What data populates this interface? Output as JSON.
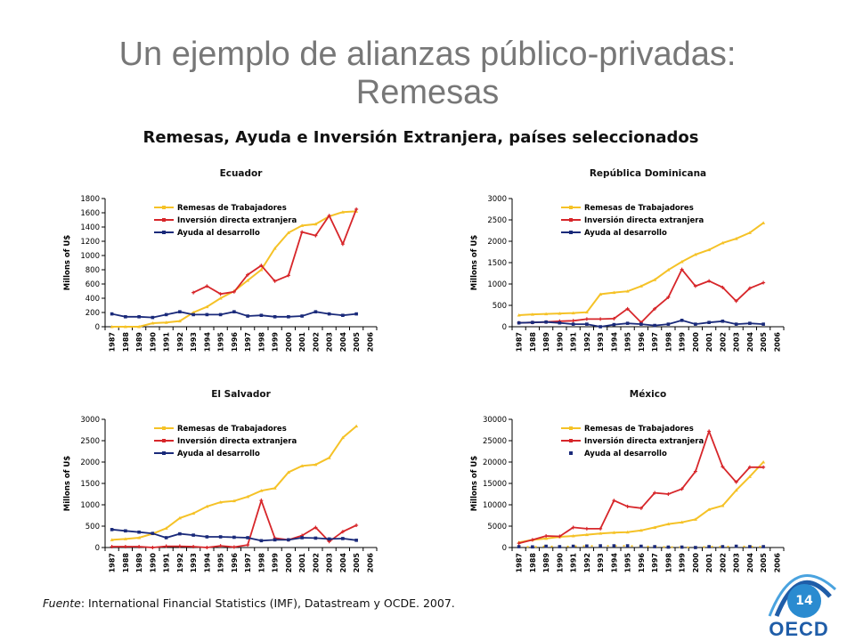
{
  "title_line1": "Un ejemplo de alianzas público-privadas:",
  "title_line2": "Remesas",
  "subtitle": "Remesas, Ayuda e Inversión Extranjera, países seleccionados",
  "source_label": "Fuente",
  "source_text": ": International Financial Statistics (IMF), Datastream y OCDE. 2007.",
  "page_number": "14",
  "logo_text": "OECD",
  "colors": {
    "remesas": "#f5c227",
    "ied": "#d7262a",
    "ayuda": "#1a2a7a"
  },
  "chart_data": [
    {
      "type": "line",
      "title": "Ecuador",
      "ylabel": "Millons of U$",
      "ylim": [
        0,
        1800
      ],
      "yticks": [
        0,
        200,
        400,
        600,
        800,
        1000,
        1200,
        1400,
        1600,
        1800
      ],
      "categories": [
        "1987",
        "1988",
        "1989",
        "1990",
        "1991",
        "1992",
        "1993",
        "1994",
        "1995",
        "1996",
        "1997",
        "1998",
        "1999",
        "2000",
        "2001",
        "2002",
        "2003",
        "2004",
        "2005",
        "2006"
      ],
      "legend": "top-left",
      "series": [
        {
          "name": "Remesas de Trabajadores",
          "values": [
            0,
            0,
            0,
            50,
            60,
            80,
            200,
            280,
            400,
            500,
            650,
            800,
            1100,
            1320,
            1420,
            1440,
            1550,
            1610,
            1620,
            null
          ]
        },
        {
          "name": "Inversión directa extranjera",
          "values": [
            null,
            null,
            null,
            null,
            null,
            null,
            480,
            570,
            460,
            490,
            730,
            860,
            640,
            720,
            1330,
            1280,
            1560,
            1160,
            1650,
            null
          ]
        },
        {
          "name": "Ayuda al desarrollo",
          "values": [
            180,
            140,
            140,
            130,
            170,
            210,
            170,
            170,
            170,
            210,
            150,
            160,
            140,
            140,
            150,
            210,
            180,
            160,
            180,
            null
          ]
        }
      ]
    },
    {
      "type": "line",
      "title": "República Dominicana",
      "ylabel": "Millons of U$",
      "ylim": [
        0,
        3000
      ],
      "yticks": [
        0,
        500,
        1000,
        1500,
        2000,
        2500,
        3000
      ],
      "categories": [
        "1987",
        "1988",
        "1989",
        "1990",
        "1991",
        "1992",
        "1993",
        "1994",
        "1995",
        "1996",
        "1997",
        "1998",
        "1999",
        "2000",
        "2001",
        "2002",
        "2003",
        "2004",
        "2005",
        "2006"
      ],
      "legend": "top-left",
      "series": [
        {
          "name": "Remesas de Trabajadores",
          "values": [
            270,
            290,
            300,
            310,
            320,
            340,
            760,
            800,
            830,
            950,
            1100,
            1330,
            1520,
            1690,
            1800,
            1960,
            2060,
            2200,
            2430,
            null
          ]
        },
        {
          "name": "Inversión directa extranjera",
          "values": [
            90,
            100,
            110,
            130,
            140,
            180,
            180,
            190,
            420,
            100,
            420,
            690,
            1340,
            950,
            1070,
            920,
            600,
            900,
            1030,
            null
          ]
        },
        {
          "name": "Ayuda al desarrollo",
          "values": [
            90,
            100,
            110,
            90,
            60,
            60,
            0,
            50,
            80,
            60,
            30,
            60,
            150,
            60,
            100,
            130,
            60,
            80,
            60,
            null
          ]
        }
      ]
    },
    {
      "type": "line",
      "title": "El Salvador",
      "ylabel": "Millons of U$",
      "ylim": [
        0,
        3000
      ],
      "yticks": [
        0,
        500,
        1000,
        1500,
        2000,
        2500,
        3000
      ],
      "categories": [
        "1987",
        "1988",
        "1989",
        "1990",
        "1991",
        "1992",
        "1993",
        "1994",
        "1995",
        "1996",
        "1997",
        "1998",
        "1999",
        "2000",
        "2001",
        "2002",
        "2003",
        "2004",
        "2005",
        "2006"
      ],
      "legend": "top-left",
      "series": [
        {
          "name": "Remesas de Trabajadores",
          "values": [
            180,
            200,
            230,
            320,
            450,
            690,
            800,
            960,
            1060,
            1090,
            1190,
            1330,
            1390,
            1760,
            1910,
            1940,
            2100,
            2570,
            2840,
            null
          ]
        },
        {
          "name": "Inversión directa extranjera",
          "values": [
            20,
            20,
            20,
            0,
            30,
            30,
            20,
            0,
            40,
            10,
            60,
            1100,
            220,
            180,
            280,
            470,
            140,
            370,
            520,
            null
          ]
        },
        {
          "name": "Ayuda al desarrollo",
          "values": [
            420,
            390,
            360,
            330,
            230,
            320,
            290,
            250,
            250,
            240,
            230,
            160,
            180,
            180,
            230,
            220,
            200,
            210,
            170,
            null
          ]
        }
      ]
    },
    {
      "type": "line",
      "title": "México",
      "ylabel": "Millons of U$",
      "ylim": [
        0,
        30000
      ],
      "yticks": [
        0,
        5000,
        10000,
        15000,
        20000,
        25000,
        30000
      ],
      "categories": [
        "1987",
        "1988",
        "1989",
        "1990",
        "1991",
        "1992",
        "1993",
        "1994",
        "1995",
        "1996",
        "1997",
        "1998",
        "1999",
        "2000",
        "2001",
        "2002",
        "2003",
        "2004",
        "2005",
        "2006"
      ],
      "legend": "top-left",
      "series": [
        {
          "name": "Remesas de Trabajadores",
          "values": [
            1200,
            1800,
            2100,
            2500,
            2700,
            3000,
            3300,
            3500,
            3600,
            4000,
            4700,
            5500,
            5900,
            6600,
            8900,
            9800,
            13400,
            16600,
            20000,
            null
          ]
        },
        {
          "name": "Inversión directa extranjera",
          "values": [
            1000,
            1800,
            2700,
            2600,
            4700,
            4400,
            4400,
            11000,
            9600,
            9200,
            12800,
            12500,
            13700,
            17800,
            27200,
            18900,
            15300,
            18800,
            18800,
            null
          ]
        },
        {
          "name": "Ayuda al desarrollo",
          "values": [
            200,
            150,
            300,
            200,
            300,
            350,
            400,
            400,
            400,
            300,
            200,
            100,
            100,
            0,
            200,
            200,
            300,
            200,
            200,
            null
          ]
        }
      ]
    }
  ]
}
